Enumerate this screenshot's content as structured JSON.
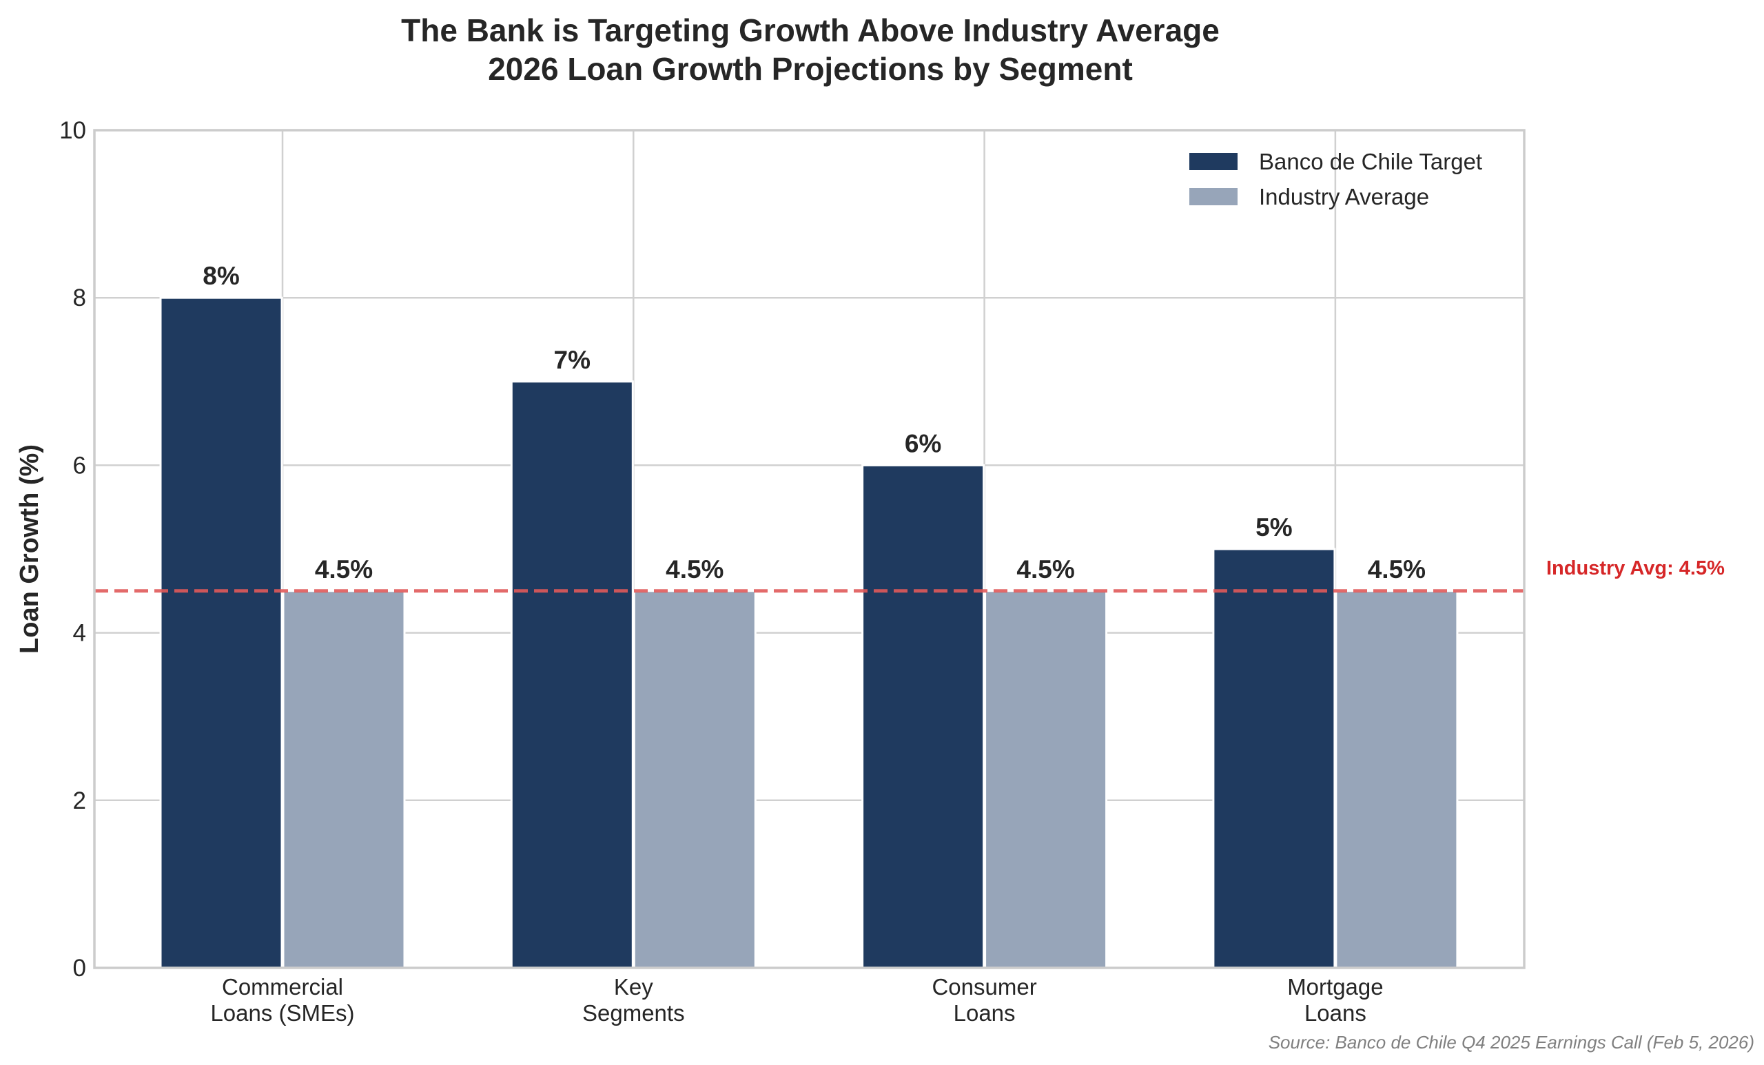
{
  "chart_data": {
    "type": "bar",
    "title": "The Bank is Targeting Growth Above Industry Average",
    "subtitle": "2026 Loan Growth Projections by Segment",
    "xlabel": "",
    "ylabel": "Loan Growth (%)",
    "ylim": [
      0,
      10
    ],
    "yticks": [
      0,
      2,
      4,
      6,
      8,
      10
    ],
    "grid": true,
    "legend_position": "top-right",
    "categories": [
      "Commercial\nLoans (SMEs)",
      "Key\nSegments",
      "Consumer\nLoans",
      "Mortgage\nLoans"
    ],
    "series": [
      {
        "name": "Banco de Chile Target",
        "values": [
          8,
          7,
          6,
          5
        ],
        "labels": [
          "8%",
          "7%",
          "6%",
          "5%"
        ],
        "color": "#1f3a5f"
      },
      {
        "name": "Industry Average",
        "values": [
          4.5,
          4.5,
          4.5,
          4.5
        ],
        "labels": [
          "4.5%",
          "4.5%",
          "4.5%",
          "4.5%"
        ],
        "color": "#97a5b9"
      }
    ],
    "reference_line": {
      "value": 4.5,
      "label": "Industry Avg: 4.5%",
      "color": "#e05a5a",
      "label_color": "#d62728",
      "style": "dashed"
    },
    "source": "Source: Banco de Chile Q4 2025 Earnings Call (Feb 5, 2026)"
  },
  "colors": {
    "grid": "#d0d0d0",
    "spine": "#cccccc",
    "text": "#262626"
  }
}
